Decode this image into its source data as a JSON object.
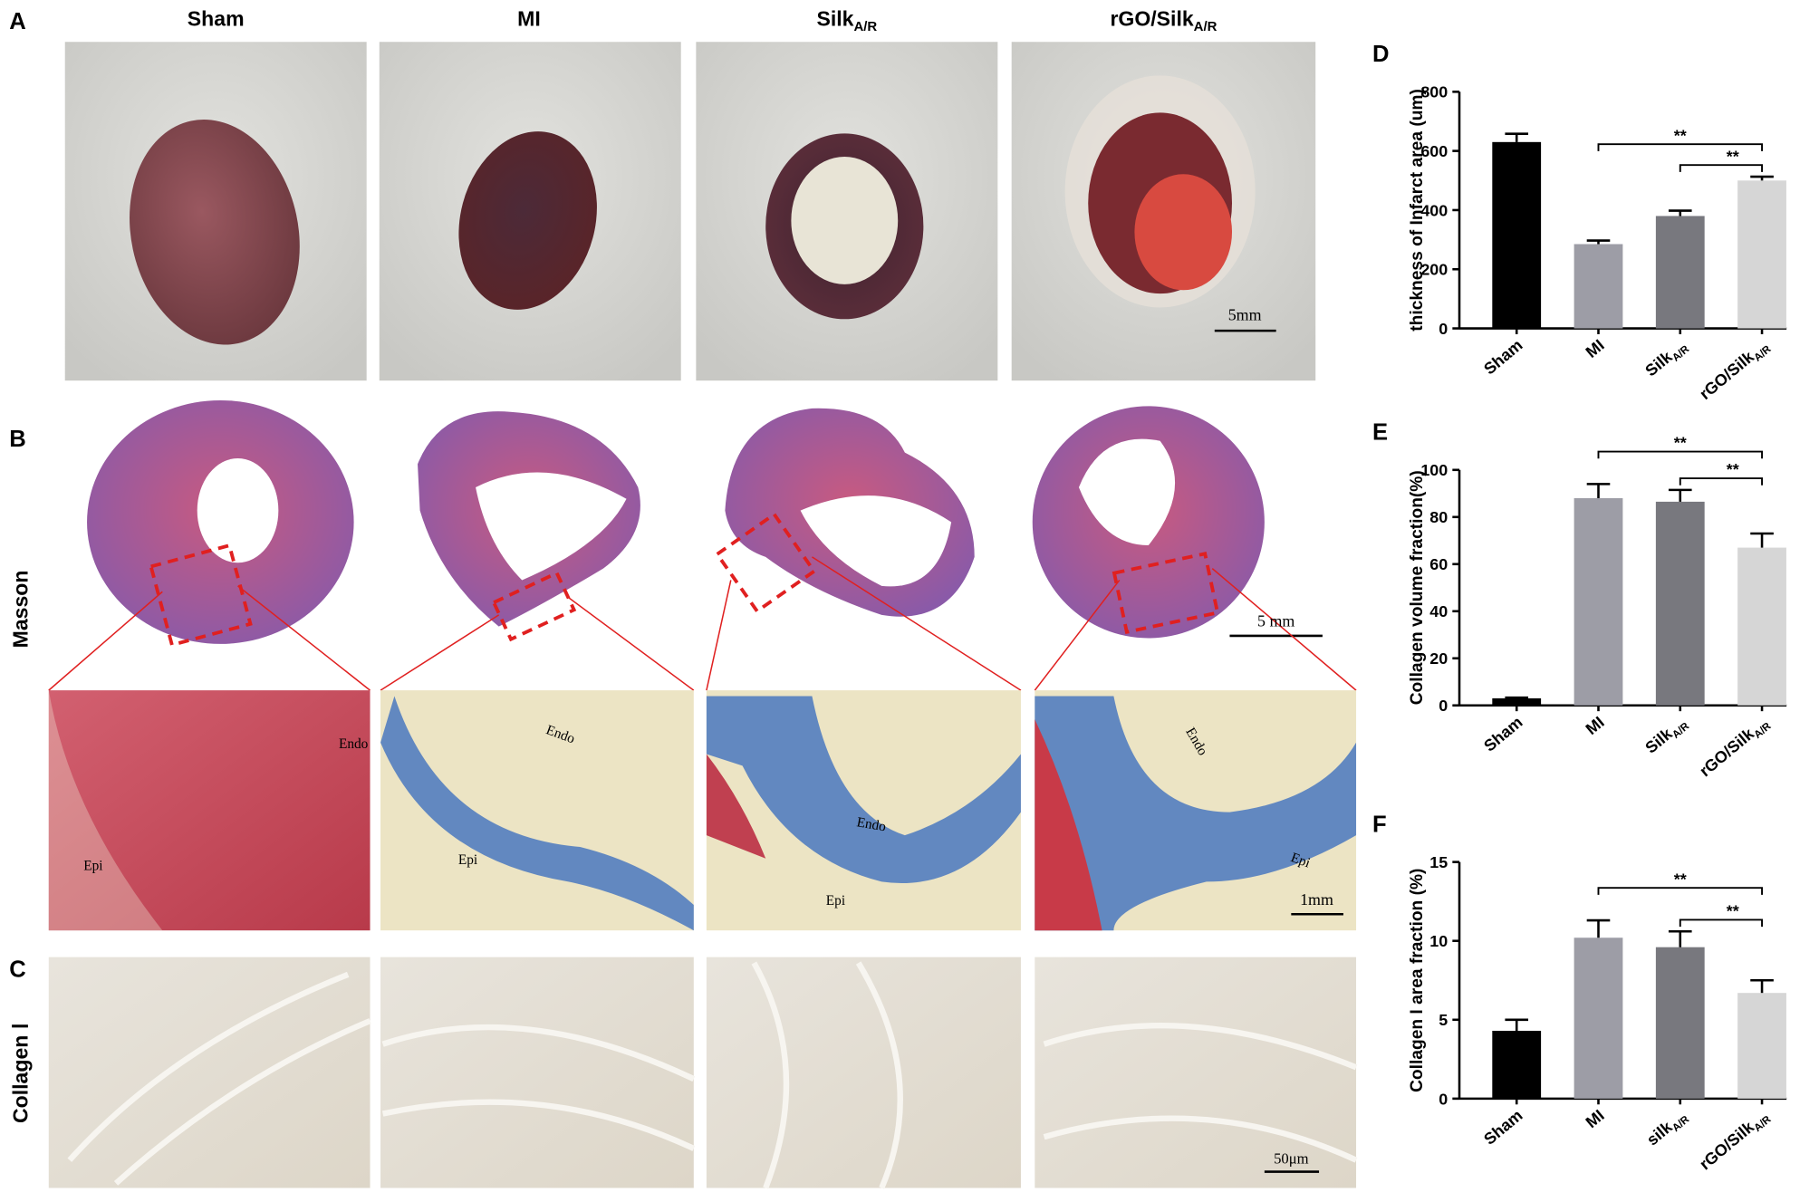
{
  "figure": {
    "panel_labels": [
      "A",
      "B",
      "C"
    ],
    "columns": [
      "Sham",
      "MI",
      [
        "Silk",
        "A/R"
      ],
      [
        "rGO/Silk",
        "A/R"
      ]
    ],
    "row_labels": [
      "Masson",
      "Collagen Ⅰ"
    ],
    "scale_bars": [
      "5mm",
      "5 mm",
      "1mm",
      "50μm"
    ],
    "zoom_labels": [
      [
        "Endo",
        "Epi"
      ],
      [
        "Endo",
        "Epi"
      ],
      [
        "Endo",
        "Epi"
      ],
      [
        "Endo",
        "Epi"
      ]
    ]
  },
  "chart_data": [
    {
      "type": "bar",
      "panel": "D",
      "ylabel": "thickness of Infarct area (um)",
      "categories": [
        "Sham",
        "MI",
        [
          "Silk",
          "A/R"
        ],
        [
          "rGO/Silk",
          "A/R"
        ]
      ],
      "values": [
        630,
        285,
        380,
        500
      ],
      "errors": [
        28,
        12,
        18,
        13
      ],
      "colors": [
        "#000000",
        "#9d9da6",
        "#78787e",
        "#d6d6d6"
      ],
      "ylim": [
        0,
        800
      ],
      "yticks": [
        0,
        200,
        400,
        600,
        800
      ],
      "significance": [
        {
          "from": 1,
          "to": 3,
          "label": "**"
        },
        {
          "from": 2,
          "to": 3,
          "label": "**"
        }
      ]
    },
    {
      "type": "bar",
      "panel": "E",
      "ylabel": "Collagen volume fraction(%)",
      "categories": [
        "Sham",
        "MI",
        [
          "Silk",
          "A/R"
        ],
        [
          "rGO/Silk",
          "A/R"
        ]
      ],
      "values": [
        3,
        88,
        86.5,
        67
      ],
      "errors": [
        0.3,
        6,
        5,
        6
      ],
      "colors": [
        "#000000",
        "#9d9da6",
        "#78787e",
        "#d6d6d6"
      ],
      "ylim": [
        0,
        100
      ],
      "yticks": [
        0,
        20,
        40,
        60,
        80,
        100
      ],
      "significance": [
        {
          "from": 1,
          "to": 3,
          "label": "**"
        },
        {
          "from": 2,
          "to": 3,
          "label": "**"
        }
      ]
    },
    {
      "type": "bar",
      "panel": "F",
      "ylabel": "Collagen I  area fraction (%)",
      "categories": [
        "Sham",
        "MI",
        [
          "silk",
          "A/R"
        ],
        [
          "rGO/Silk",
          "A/R"
        ]
      ],
      "values": [
        4.3,
        10.2,
        9.6,
        6.7
      ],
      "errors": [
        0.7,
        1.1,
        1.0,
        0.8
      ],
      "colors": [
        "#000000",
        "#9d9da6",
        "#78787e",
        "#d6d6d6"
      ],
      "ylim": [
        0,
        15
      ],
      "yticks": [
        0,
        5,
        10,
        15
      ],
      "significance": [
        {
          "from": 1,
          "to": 3,
          "label": "**"
        },
        {
          "from": 2,
          "to": 3,
          "label": "**"
        }
      ]
    }
  ]
}
